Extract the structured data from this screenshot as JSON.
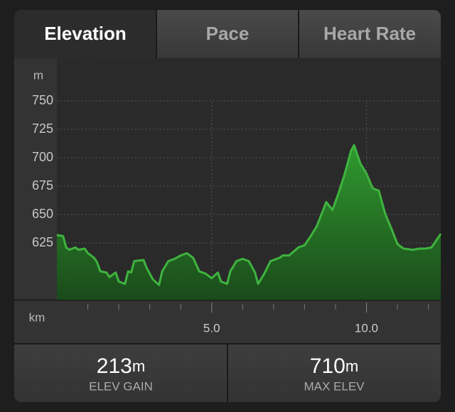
{
  "tabs": [
    "Elevation",
    "Pace",
    "Heart Rate"
  ],
  "chart_data": {
    "type": "area",
    "y_label": "m",
    "x_label": "km",
    "x": [
      0,
      0.2,
      0.3,
      0.4,
      0.6,
      0.7,
      0.9,
      1.0,
      1.2,
      1.3,
      1.4,
      1.6,
      1.7,
      1.9,
      2.0,
      2.2,
      2.3,
      2.4,
      2.5,
      2.8,
      2.9,
      3.1,
      3.3,
      3.4,
      3.6,
      3.8,
      4.0,
      4.2,
      4.4,
      4.6,
      4.8,
      5.0,
      5.2,
      5.3,
      5.5,
      5.6,
      5.8,
      6.0,
      6.2,
      6.4,
      6.5,
      6.7,
      6.9,
      7.2,
      7.3,
      7.5,
      7.8,
      8.0,
      8.2,
      8.4,
      8.7,
      8.9,
      9.1,
      9.3,
      9.5,
      9.6,
      9.8,
      10.0,
      10.2,
      10.4,
      10.6,
      10.8,
      11.0,
      11.2,
      11.5,
      11.7,
      11.9,
      12.1,
      12.3,
      12.4
    ],
    "values": [
      632,
      631,
      621,
      619,
      621,
      619,
      620,
      616,
      612,
      608,
      600,
      599,
      595,
      599,
      591,
      589,
      600,
      599,
      609,
      610,
      603,
      593,
      588,
      600,
      609,
      611,
      614,
      616,
      612,
      600,
      598,
      594,
      599,
      591,
      589,
      600,
      609,
      611,
      609,
      599,
      589,
      598,
      609,
      612,
      614,
      614,
      621,
      623,
      631,
      640,
      661,
      654,
      669,
      686,
      706,
      711,
      695,
      686,
      673,
      671,
      651,
      638,
      624,
      620,
      619,
      620,
      620,
      621,
      629,
      633
    ],
    "color": "#3fb43f",
    "xlim": [
      0,
      12.4
    ],
    "ylim": [
      575,
      787.5
    ],
    "xticks": [
      {
        "value": 5,
        "label": "5.0"
      },
      {
        "value": 10,
        "label": "10.0"
      }
    ],
    "xminorticks": [
      1,
      2,
      3,
      4,
      6,
      7,
      8,
      9,
      11,
      12
    ],
    "yticks": [
      625,
      650,
      675,
      700,
      725,
      750
    ],
    "grid": true
  },
  "stats": [
    {
      "value": "213",
      "unit": "m",
      "label": "ELEV GAIN"
    },
    {
      "value": "710",
      "unit": "m",
      "label": "MAX ELEV"
    }
  ]
}
